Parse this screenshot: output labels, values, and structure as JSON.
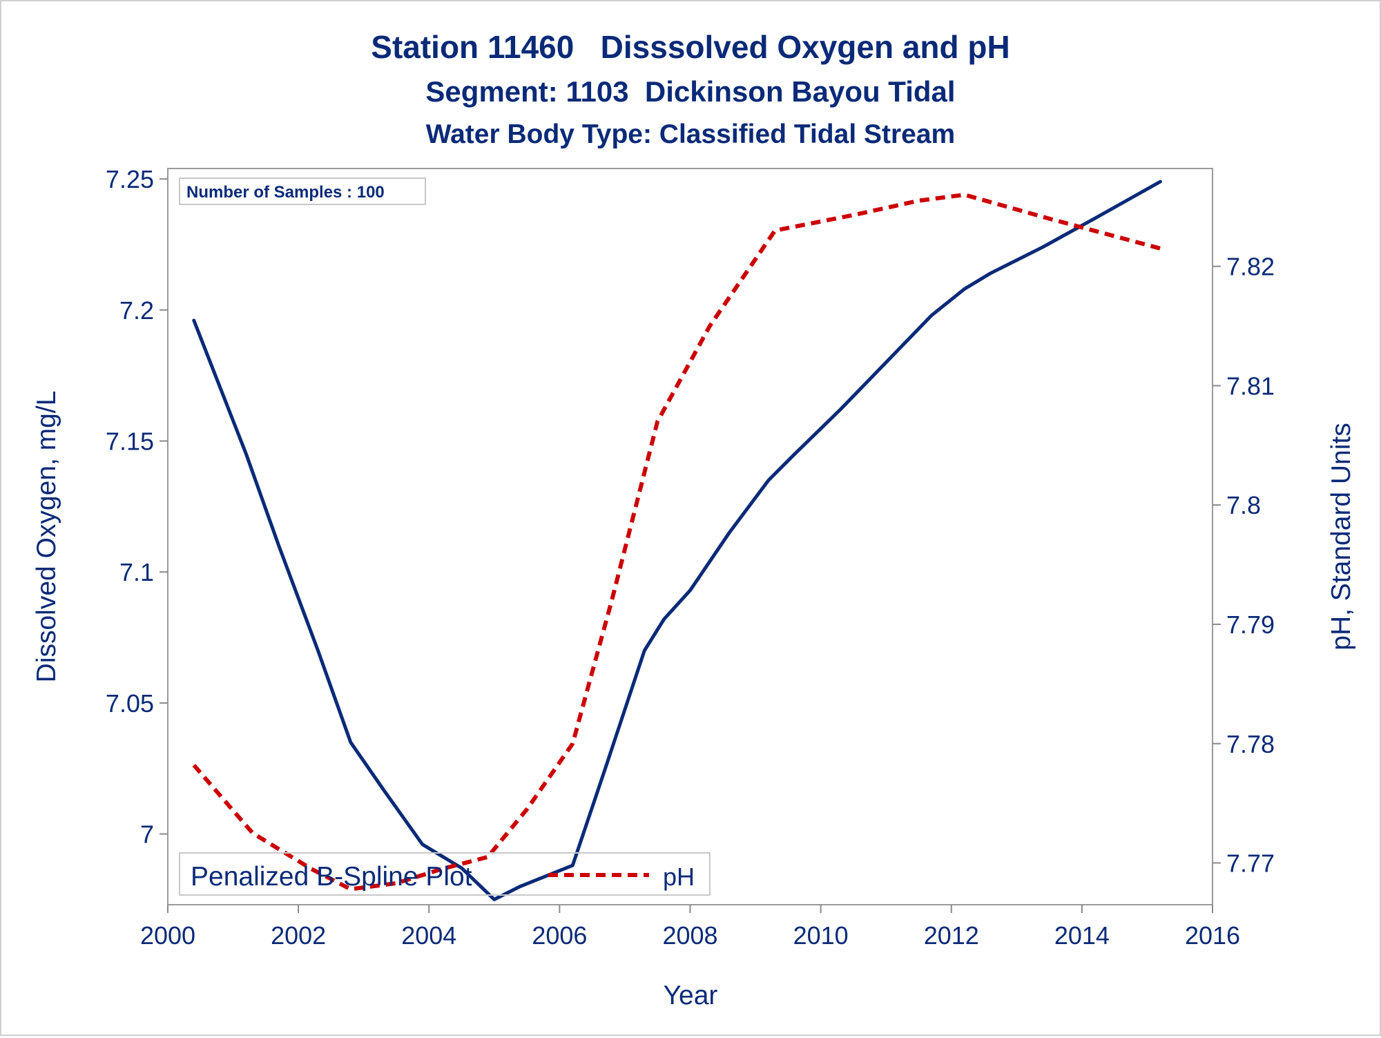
{
  "chart_data": {
    "type": "line",
    "title": "Station 11460   Disssolved Oxygen and pH",
    "subtitle": "Segment: 1103  Dickinson Bayou Tidal",
    "subtitle2": "Water Body Type: Classified Tidal Stream",
    "inset_label": "Number of Samples : 100",
    "xlabel": "Year",
    "ylabel_left": "Dissolved Oxygen, mg/L",
    "ylabel_right": "pH, Standard Units",
    "xlim": [
      2000,
      2016
    ],
    "ylim_left": [
      6.973,
      7.254
    ],
    "ylim_right": [
      7.7665,
      7.8282
    ],
    "x_ticks": [
      2000,
      2002,
      2004,
      2006,
      2008,
      2010,
      2012,
      2014,
      2016
    ],
    "x_tick_labels": [
      "2000",
      "2002",
      "2004",
      "2006",
      "2008",
      "2010",
      "2012",
      "2014",
      "2016"
    ],
    "y_left_ticks": [
      7.0,
      7.05,
      7.1,
      7.15,
      7.2,
      7.25
    ],
    "y_left_tick_labels": [
      "7",
      "7.05",
      "7.1",
      "7.15",
      "7.2",
      "7.25"
    ],
    "y_right_ticks": [
      7.77,
      7.78,
      7.79,
      7.8,
      7.81,
      7.82
    ],
    "y_right_tick_labels": [
      "7.77",
      "7.78",
      "7.79",
      "7.8",
      "7.81",
      "7.82"
    ],
    "grid": false,
    "legend_position": "bottom-left inside plot",
    "series": [
      {
        "name": "Penalized B-Spline Plot",
        "axis": "left",
        "style": "solid",
        "color": "#0a2a78",
        "x": [
          2000.4,
          2001.2,
          2001.7,
          2002.3,
          2002.8,
          2003.3,
          2003.9,
          2004.5,
          2005.0,
          2005.4,
          2006.2,
          2006.7,
          2007.3,
          2007.6,
          2008.0,
          2008.6,
          2009.2,
          2009.6,
          2010.3,
          2011.0,
          2011.7,
          2012.2,
          2012.6,
          2013.4,
          2014.2,
          2015.2
        ],
        "y": [
          7.196,
          7.145,
          7.11,
          7.07,
          7.035,
          7.017,
          6.996,
          6.987,
          6.975,
          6.98,
          6.988,
          7.025,
          7.07,
          7.082,
          7.093,
          7.115,
          7.135,
          7.145,
          7.162,
          7.18,
          7.198,
          7.208,
          7.214,
          7.224,
          7.235,
          7.249
        ]
      },
      {
        "name": "pH",
        "axis": "right",
        "style": "dashed",
        "color": "#cc0000",
        "x": [
          2000.4,
          2001.3,
          2002.2,
          2002.8,
          2003.5,
          2004.2,
          2004.9,
          2005.5,
          2006.2,
          2006.8,
          2007.5,
          2008.3,
          2009.3,
          2010.5,
          2011.5,
          2012.2,
          2013.5,
          2015.2
        ],
        "y": [
          7.7782,
          7.7725,
          7.7695,
          7.7678,
          7.7683,
          7.7695,
          7.7705,
          7.7745,
          7.78,
          7.792,
          7.807,
          7.815,
          7.823,
          7.8243,
          7.8255,
          7.826,
          7.824,
          7.8215
        ]
      }
    ]
  }
}
